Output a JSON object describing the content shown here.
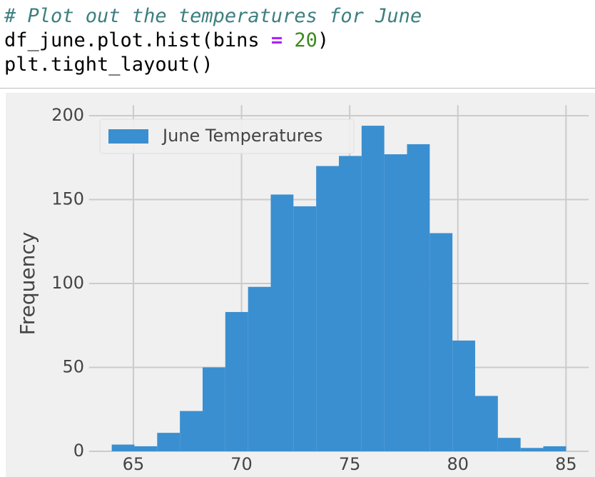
{
  "code": {
    "lines": [
      [
        "# Plot out the temperatures for June"
      ],
      [
        "df_june.plot.hist(bins ",
        "=",
        " ",
        "20",
        ")"
      ],
      [
        "plt.tight_layout()"
      ]
    ]
  },
  "chart_data": {
    "type": "histogram",
    "bins": [
      64,
      65.05,
      66.1,
      67.15,
      68.2,
      69.25,
      70.3,
      71.35,
      72.4,
      73.45,
      74.5,
      75.55,
      76.6,
      77.65,
      78.7,
      79.75,
      80.8,
      81.85,
      82.9,
      83.95,
      85
    ],
    "series": [
      {
        "name": "June Temperatures",
        "color": "#3a8fd0",
        "values": [
          4,
          3,
          11,
          24,
          50,
          83,
          98,
          153,
          146,
          170,
          176,
          194,
          177,
          183,
          130,
          66,
          33,
          8,
          2,
          3
        ]
      }
    ],
    "y_label": "Frequency",
    "xlim": [
      62.95,
      86.05
    ],
    "ylim": [
      0,
      203.7
    ],
    "xticks": [
      65,
      70,
      75,
      80,
      85
    ],
    "yticks": [
      0,
      50,
      100,
      150,
      200
    ],
    "grid": true,
    "legend": "upper left"
  }
}
